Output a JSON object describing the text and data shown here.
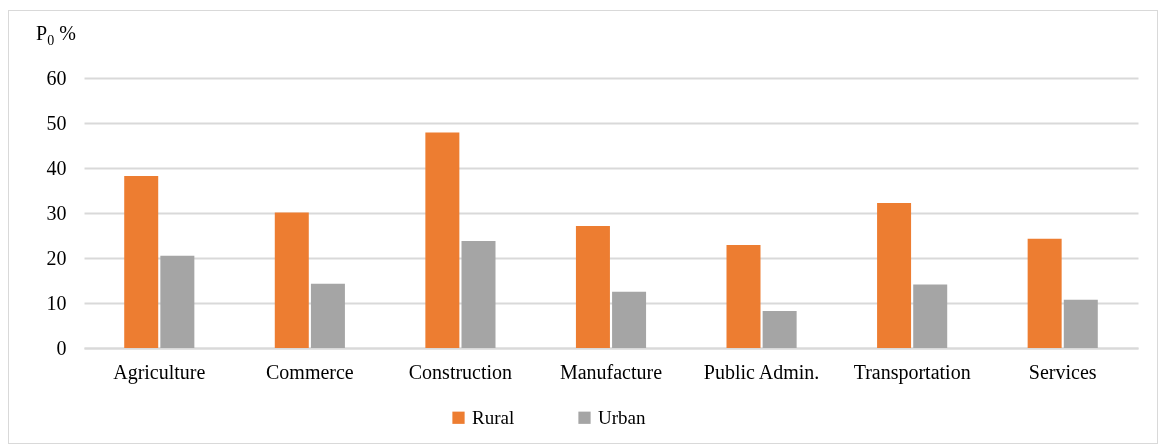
{
  "chart_data": {
    "type": "bar",
    "ylabel": "P$_{0}$ %",
    "categories": [
      "Agriculture",
      "Commerce",
      "Construction",
      "Manufacture",
      "Public Admin.",
      "Transportation",
      "Services"
    ],
    "series": [
      {
        "name": "Rural",
        "color": "#ed7d31",
        "values": [
          38.2,
          30.1,
          47.9,
          27.1,
          22.9,
          32.2,
          24.3
        ]
      },
      {
        "name": "Urban",
        "color": "#a5a5a5",
        "values": [
          20.5,
          14.3,
          23.8,
          12.5,
          8.2,
          14.1,
          10.7
        ]
      }
    ],
    "ylim": [
      0,
      60
    ],
    "yticks": [
      0,
      10,
      20,
      30,
      40,
      50,
      60
    ],
    "grid": "y",
    "legend": "bottom"
  }
}
